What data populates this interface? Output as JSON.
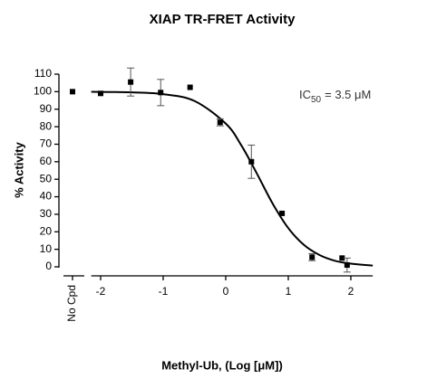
{
  "chart_data": {
    "type": "scatter",
    "title": "XIAP TR-FRET Activity",
    "x_label": "Methyl-Ub, (Log [μM])",
    "y_label": "% Activity",
    "annotation": {
      "prefix": "IC",
      "subscript": "50",
      "suffix": "= 3.5 μM"
    },
    "control": {
      "label": "No Cpd",
      "value": 100
    },
    "series": [
      {
        "color": "#000000",
        "x": [
          -2,
          -1.52,
          -1.04,
          -0.57,
          -0.09,
          0.41,
          0.9,
          1.38,
          1.86,
          1.94
        ],
        "values": [
          99,
          105.5,
          99.5,
          102.5,
          82.5,
          60,
          30.5,
          5.5,
          5,
          1
        ],
        "errors": [
          null,
          8,
          7.5,
          null,
          2,
          9.5,
          null,
          2,
          null,
          4
        ]
      }
    ],
    "curve": {
      "color": "#000000",
      "x": [
        -2.15,
        -1.5,
        -1,
        -0.5,
        0,
        0.25,
        0.5,
        0.75,
        1,
        1.25,
        1.5,
        1.75,
        2,
        2.35
      ],
      "values": [
        99.9,
        99.6,
        98.6,
        94.7,
        81.8,
        69.3,
        53.1,
        36.1,
        22.1,
        12.5,
        6.7,
        3.4,
        1.8,
        0.7
      ]
    },
    "xlim": [
      -2.15,
      2.35
    ],
    "xticks": [
      -2,
      -1,
      0,
      1,
      2
    ],
    "ylim": [
      0,
      110
    ],
    "yticks": [
      0,
      10,
      20,
      30,
      40,
      50,
      60,
      70,
      80,
      90,
      100,
      110
    ]
  }
}
